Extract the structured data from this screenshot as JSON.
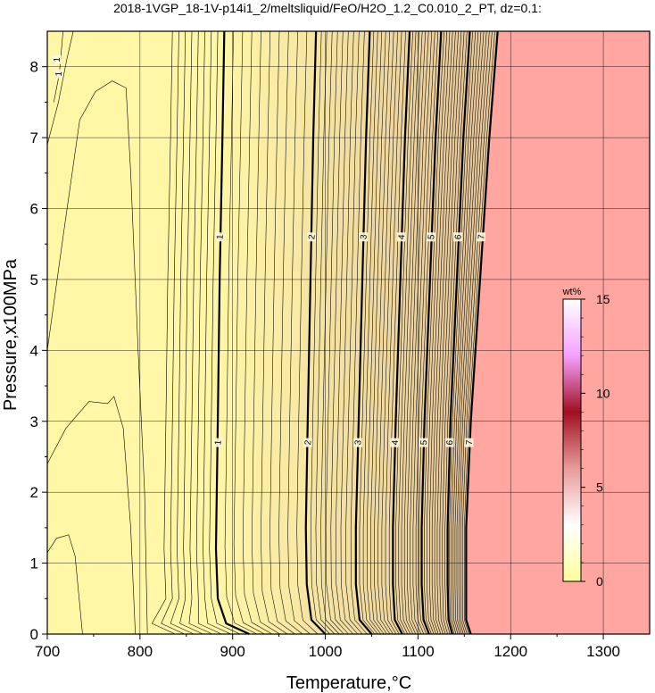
{
  "chart_data": {
    "type": "contour",
    "title": "2018-1VGP_18-1V-p14i1_2/meltsliquid/FeO/H2O_1.2_C0.010_2_PT, dz=0.1:",
    "xlabel": "Temperature,°C",
    "ylabel": "Pressure,x100MPa",
    "xlim": [
      700,
      1350
    ],
    "ylim": [
      0,
      8.5
    ],
    "xticks": [
      700,
      800,
      900,
      1000,
      1100,
      1200,
      1300
    ],
    "yticks": [
      0,
      1,
      2,
      3,
      4,
      5,
      6,
      7,
      8
    ],
    "grid": true,
    "contour_interval": 0.1,
    "colorbar": {
      "label": "wt%",
      "range": [
        0,
        15
      ],
      "ticks": [
        0,
        5,
        10,
        15
      ],
      "colors": [
        "#ffff99",
        "#ffffff",
        "#e89a9a",
        "#a01020",
        "#f4a0ff",
        "#ffffff"
      ]
    },
    "background_colors": {
      "low": "#fff7a6",
      "mid": "#e8c89a",
      "saturated": "#ffa6a0"
    },
    "major_contours": [
      {
        "value": 1,
        "points": [
          [
            918,
            0
          ],
          [
            893,
            0.15
          ],
          [
            884,
            0.5
          ],
          [
            882,
            1.2
          ],
          [
            884,
            3
          ],
          [
            886,
            5
          ],
          [
            889,
            7
          ],
          [
            891,
            8.5
          ]
        ]
      },
      {
        "value": 2,
        "points": [
          [
            1000,
            0
          ],
          [
            985,
            0.2
          ],
          [
            980,
            0.7
          ],
          [
            979,
            1.5
          ],
          [
            981,
            3
          ],
          [
            984,
            5
          ],
          [
            987,
            7
          ],
          [
            990,
            8.5
          ]
        ]
      },
      {
        "value": 3,
        "points": [
          [
            1050,
            0
          ],
          [
            1037,
            0.2
          ],
          [
            1033,
            0.7
          ],
          [
            1033,
            1.5
          ],
          [
            1036,
            3
          ],
          [
            1040,
            5
          ],
          [
            1044,
            7
          ],
          [
            1048,
            8.5
          ]
        ]
      },
      {
        "value": 4,
        "points": [
          [
            1083,
            0
          ],
          [
            1075,
            0.2
          ],
          [
            1073,
            0.7
          ],
          [
            1073,
            1.5
          ],
          [
            1076,
            3
          ],
          [
            1081,
            5
          ],
          [
            1086,
            7
          ],
          [
            1091,
            8.5
          ]
        ]
      },
      {
        "value": 5,
        "points": [
          [
            1112,
            0
          ],
          [
            1106,
            0.2
          ],
          [
            1104,
            0.7
          ],
          [
            1104,
            1.5
          ],
          [
            1107,
            3
          ],
          [
            1113,
            5
          ],
          [
            1119,
            7
          ],
          [
            1125,
            8.5
          ]
        ]
      },
      {
        "value": 6,
        "points": [
          [
            1137,
            0
          ],
          [
            1133,
            0.2
          ],
          [
            1132,
            0.7
          ],
          [
            1132,
            1.5
          ],
          [
            1135,
            3
          ],
          [
            1142,
            5
          ],
          [
            1149,
            7
          ],
          [
            1156,
            8.5
          ]
        ]
      },
      {
        "value": 7,
        "points": [
          [
            1157,
            0
          ],
          [
            1152,
            0.2
          ],
          [
            1152,
            0.7
          ],
          [
            1152,
            1.5
          ],
          [
            1157,
            3
          ],
          [
            1167,
            5
          ],
          [
            1177,
            7
          ],
          [
            1186,
            8.5
          ]
        ]
      }
    ],
    "contour_labels": [
      {
        "text": "1",
        "at": [
          886,
          5.6
        ]
      },
      {
        "text": "1",
        "at": [
          884,
          2.7
        ]
      },
      {
        "text": "2",
        "at": [
          985,
          5.6
        ]
      },
      {
        "text": "2",
        "at": [
          981,
          2.7
        ]
      },
      {
        "text": "3",
        "at": [
          1041,
          5.6
        ]
      },
      {
        "text": "3",
        "at": [
          1035,
          2.7
        ]
      },
      {
        "text": "4",
        "at": [
          1082,
          5.6
        ]
      },
      {
        "text": "4",
        "at": [
          1075,
          2.7
        ]
      },
      {
        "text": "5",
        "at": [
          1114,
          5.6
        ]
      },
      {
        "text": "5",
        "at": [
          1106,
          2.7
        ]
      },
      {
        "text": "6",
        "at": [
          1143,
          5.6
        ]
      },
      {
        "text": "6",
        "at": [
          1134,
          2.7
        ]
      },
      {
        "text": "7",
        "at": [
          1168,
          5.6
        ]
      },
      {
        "text": "7",
        "at": [
          1155,
          2.7
        ]
      },
      {
        "text": "1",
        "at": [
          710,
          8.1
        ]
      },
      {
        "text": "1",
        "at": [
          712,
          7.9
        ]
      }
    ],
    "minor_closed_contours": [
      {
        "points": [
          [
            738,
            0
          ],
          [
            730,
            1.1
          ],
          [
            723,
            1.4
          ],
          [
            710,
            1.35
          ],
          [
            700,
            1.15
          ]
        ]
      },
      {
        "points": [
          [
            700,
            2.4
          ],
          [
            720,
            2.9
          ],
          [
            745,
            3.28
          ],
          [
            765,
            3.25
          ],
          [
            772,
            3.35
          ],
          [
            782,
            2.9
          ],
          [
            790,
            1.5
          ],
          [
            795,
            0
          ]
        ]
      },
      {
        "points": [
          [
            700,
            4.0
          ],
          [
            717,
            5.6
          ],
          [
            735,
            7.25
          ],
          [
            752,
            7.65
          ],
          [
            770,
            7.8
          ],
          [
            785,
            7.7
          ],
          [
            790,
            6.5
          ],
          [
            798,
            4.0
          ],
          [
            805,
            2.0
          ],
          [
            808,
            0
          ]
        ]
      },
      {
        "points": [
          [
            700,
            6.9
          ],
          [
            712,
            7.5
          ],
          [
            721,
            8.1
          ],
          [
            728,
            8.5
          ]
        ]
      },
      {
        "points": [
          [
            707,
            7.5
          ],
          [
            713,
            7.9
          ],
          [
            717,
            8.5
          ]
        ]
      }
    ]
  }
}
